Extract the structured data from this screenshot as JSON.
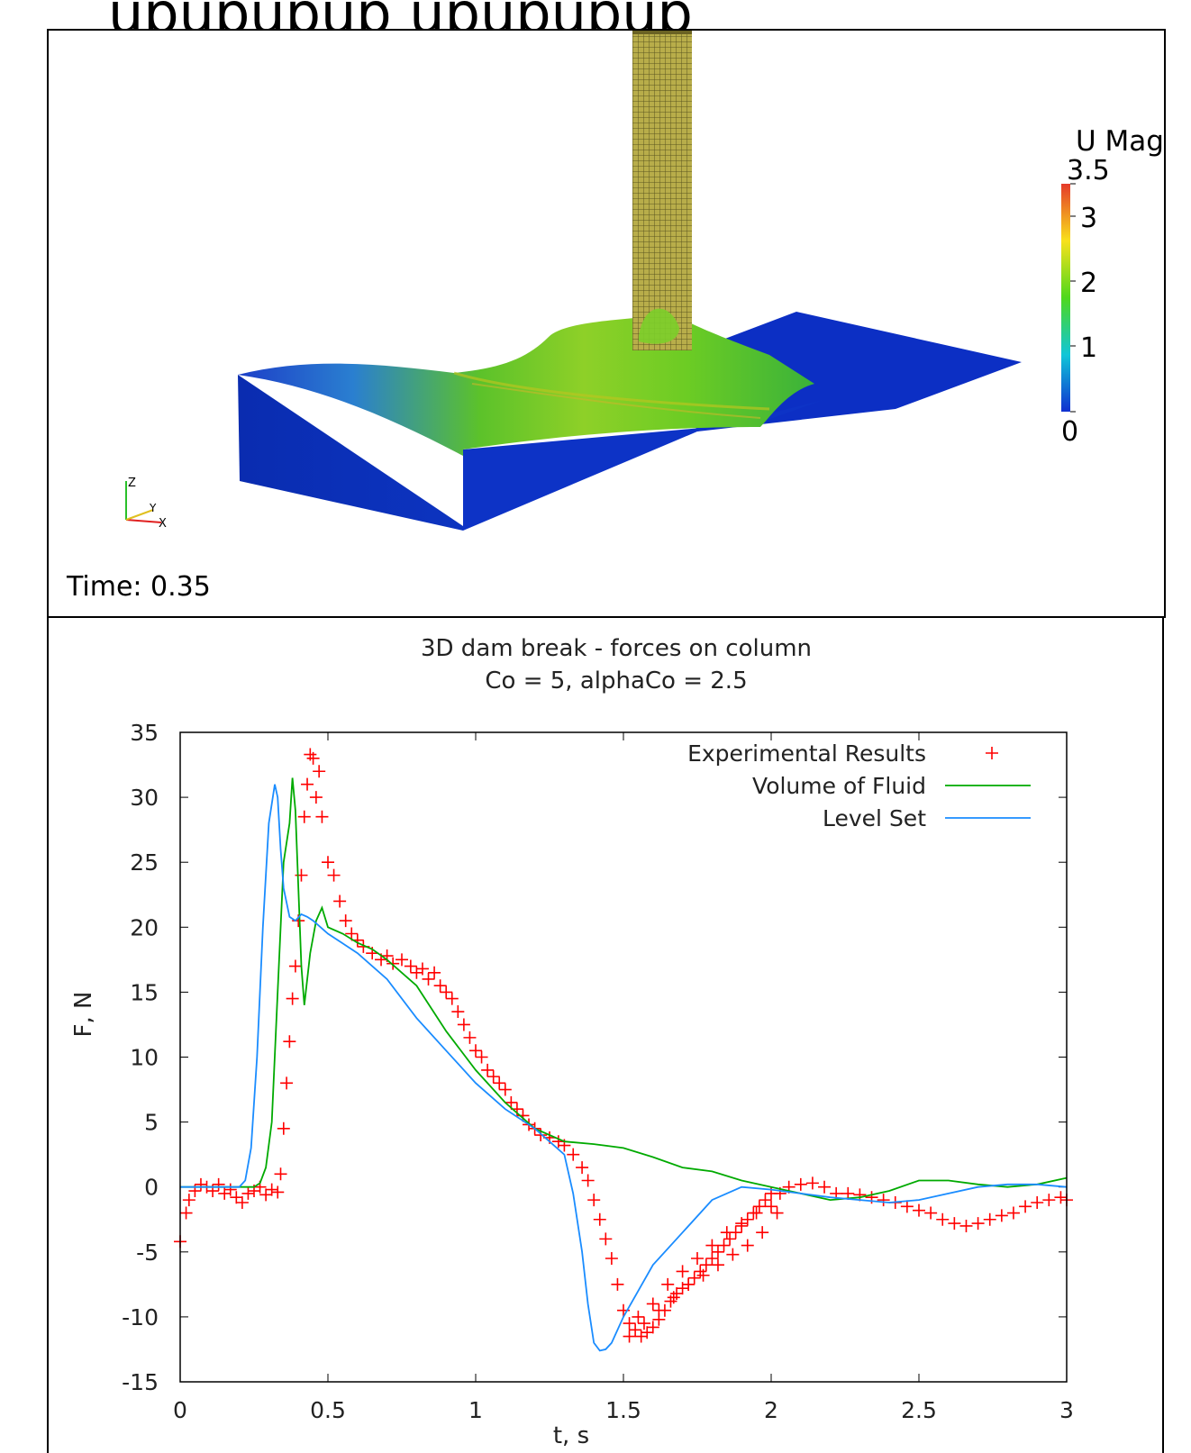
{
  "banner": {
    "text": "upupupup upupupup"
  },
  "simulation": {
    "time_label": "Time: 0.35",
    "colorbar": {
      "title": "U Mag",
      "ticks": [
        "3.5",
        "3",
        "2",
        "1",
        "0"
      ],
      "colors": [
        "#e53a2a",
        "#f8e11c",
        "#4fd81c",
        "#10c6d8",
        "#1030d0"
      ]
    },
    "axes": {
      "x": "X",
      "y": "Y",
      "z": "Z"
    }
  },
  "chart_data": {
    "type": "line",
    "title": "3D dam break - forces on column",
    "subtitle": "Co = 5, alphaCo = 2.5",
    "xlabel": "t, s",
    "ylabel": "F, N",
    "xlim": [
      0,
      3
    ],
    "ylim": [
      -15,
      35
    ],
    "x_ticks": [
      "0",
      "0.5",
      "1",
      "1.5",
      "2",
      "2.5",
      "3"
    ],
    "y_ticks": [
      "35",
      "30",
      "25",
      "20",
      "15",
      "10",
      "5",
      "0",
      "-5",
      "-10",
      "-15"
    ],
    "legend_position": "top-right",
    "series": [
      {
        "name": "Experimental Results",
        "style": "scatter",
        "color": "#ff0000",
        "x": [
          0.0,
          0.02,
          0.03,
          0.05,
          0.07,
          0.09,
          0.11,
          0.13,
          0.15,
          0.17,
          0.19,
          0.21,
          0.23,
          0.25,
          0.27,
          0.29,
          0.31,
          0.33,
          0.34,
          0.35,
          0.36,
          0.37,
          0.38,
          0.39,
          0.4,
          0.41,
          0.42,
          0.43,
          0.44,
          0.45,
          0.46,
          0.47,
          0.48,
          0.5,
          0.52,
          0.54,
          0.56,
          0.58,
          0.6,
          0.62,
          0.65,
          0.68,
          0.7,
          0.72,
          0.75,
          0.78,
          0.8,
          0.82,
          0.84,
          0.86,
          0.88,
          0.9,
          0.92,
          0.94,
          0.96,
          0.98,
          1.0,
          1.02,
          1.04,
          1.06,
          1.08,
          1.1,
          1.12,
          1.14,
          1.16,
          1.18,
          1.2,
          1.22,
          1.25,
          1.28,
          1.3,
          1.33,
          1.36,
          1.38,
          1.4,
          1.42,
          1.44,
          1.46,
          1.48,
          1.5,
          1.52,
          1.54,
          1.56,
          1.58,
          1.6,
          1.62,
          1.64,
          1.66,
          1.68,
          1.7,
          1.72,
          1.74,
          1.76,
          1.78,
          1.8,
          1.82,
          1.84,
          1.86,
          1.88,
          1.9,
          1.92,
          1.94,
          1.96,
          1.98,
          2.0,
          2.03,
          2.06,
          2.1,
          2.14,
          2.18,
          2.22,
          2.26,
          2.3,
          2.34,
          2.38,
          2.42,
          2.46,
          2.5,
          2.54,
          2.58,
          2.62,
          2.66,
          2.7,
          2.74,
          2.78,
          2.82,
          2.86,
          2.9,
          2.94,
          2.98,
          3.0,
          1.55,
          1.6,
          1.65,
          1.7,
          1.75,
          1.8,
          1.85,
          1.9,
          1.95,
          2.0,
          1.52,
          1.57,
          1.62,
          1.67,
          1.72,
          1.77,
          1.82,
          1.87,
          1.92,
          1.97,
          2.02
        ],
        "y": [
          -4.2,
          -2.0,
          -1.0,
          -0.3,
          0.2,
          0.0,
          -0.3,
          0.2,
          -0.5,
          -0.2,
          -0.8,
          -1.2,
          -0.5,
          -0.3,
          0.0,
          -0.6,
          -0.2,
          -0.4,
          1.0,
          4.5,
          8.0,
          11.2,
          14.5,
          17.0,
          20.5,
          24.0,
          28.5,
          31.0,
          33.3,
          33.0,
          30.0,
          32.0,
          28.5,
          25.0,
          24.0,
          22.0,
          20.5,
          19.5,
          19.0,
          18.5,
          18.0,
          17.5,
          17.8,
          17.2,
          17.5,
          17.0,
          16.5,
          16.8,
          16.0,
          16.5,
          15.5,
          15.0,
          14.5,
          13.5,
          12.5,
          11.5,
          10.5,
          10.0,
          9.0,
          8.5,
          8.0,
          7.5,
          6.5,
          6.0,
          5.5,
          4.8,
          4.5,
          4.0,
          3.8,
          3.5,
          3.2,
          2.5,
          1.5,
          0.5,
          -1.0,
          -2.5,
          -4.0,
          -5.5,
          -7.5,
          -9.5,
          -10.5,
          -11.0,
          -11.5,
          -11.2,
          -10.8,
          -10.2,
          -9.5,
          -8.8,
          -8.2,
          -7.8,
          -7.5,
          -7.0,
          -6.5,
          -6.0,
          -5.5,
          -5.0,
          -4.5,
          -4.0,
          -3.5,
          -3.0,
          -2.5,
          -2.0,
          -1.5,
          -1.0,
          -0.5,
          -0.5,
          0.0,
          0.2,
          0.3,
          0.0,
          -0.5,
          -0.5,
          -0.6,
          -0.8,
          -1.0,
          -1.2,
          -1.5,
          -1.8,
          -2.0,
          -2.5,
          -2.8,
          -3.0,
          -2.8,
          -2.5,
          -2.2,
          -2.0,
          -1.5,
          -1.2,
          -1.0,
          -0.8,
          -1.0,
          -10.0,
          -9.0,
          -7.5,
          -6.5,
          -5.5,
          -4.5,
          -3.5,
          -2.8,
          -2.0,
          -1.5,
          -11.5,
          -10.5,
          -9.5,
          -8.5,
          -7.5,
          -6.8,
          -6.0,
          -5.2,
          -4.5,
          -3.5,
          -2.0
        ]
      },
      {
        "name": "Volume of Fluid",
        "style": "line",
        "color": "#00aa00",
        "x": [
          0.0,
          0.1,
          0.2,
          0.25,
          0.27,
          0.29,
          0.31,
          0.33,
          0.35,
          0.37,
          0.38,
          0.39,
          0.4,
          0.41,
          0.42,
          0.44,
          0.46,
          0.48,
          0.5,
          0.55,
          0.6,
          0.65,
          0.7,
          0.8,
          0.9,
          1.0,
          1.1,
          1.2,
          1.3,
          1.4,
          1.5,
          1.6,
          1.7,
          1.8,
          1.9,
          2.0,
          2.1,
          2.2,
          2.3,
          2.4,
          2.5,
          2.6,
          2.7,
          2.8,
          2.9,
          3.0
        ],
        "y": [
          0.0,
          0.0,
          0.0,
          0.0,
          0.3,
          1.5,
          5.0,
          15.0,
          25.0,
          28.0,
          31.5,
          29.0,
          23.0,
          17.0,
          14.0,
          18.0,
          20.5,
          21.5,
          20.0,
          19.5,
          18.8,
          18.3,
          17.5,
          15.5,
          12.0,
          9.0,
          6.5,
          4.5,
          3.5,
          3.3,
          3.0,
          2.3,
          1.5,
          1.2,
          0.5,
          0.0,
          -0.5,
          -1.0,
          -0.8,
          -0.3,
          0.5,
          0.5,
          0.2,
          0.0,
          0.2,
          0.7
        ]
      },
      {
        "name": "Level Set",
        "style": "line",
        "color": "#1a8cff",
        "x": [
          0.0,
          0.1,
          0.2,
          0.22,
          0.24,
          0.26,
          0.28,
          0.3,
          0.32,
          0.33,
          0.34,
          0.35,
          0.37,
          0.39,
          0.41,
          0.43,
          0.45,
          0.5,
          0.6,
          0.7,
          0.8,
          0.9,
          1.0,
          1.1,
          1.2,
          1.3,
          1.33,
          1.36,
          1.38,
          1.4,
          1.42,
          1.44,
          1.46,
          1.5,
          1.55,
          1.6,
          1.7,
          1.8,
          1.9,
          2.0,
          2.1,
          2.2,
          2.3,
          2.4,
          2.5,
          2.6,
          2.7,
          2.8,
          2.9,
          3.0
        ],
        "y": [
          0.0,
          0.0,
          0.0,
          0.5,
          3.0,
          10.0,
          20.0,
          28.0,
          31.0,
          30.0,
          26.0,
          23.0,
          20.8,
          20.5,
          21.0,
          20.8,
          20.5,
          19.5,
          18.0,
          16.0,
          13.0,
          10.5,
          8.0,
          6.0,
          4.5,
          2.5,
          -0.5,
          -5.0,
          -9.0,
          -12.0,
          -12.6,
          -12.5,
          -12.0,
          -10.0,
          -8.0,
          -6.0,
          -3.5,
          -1.0,
          0.0,
          -0.2,
          -0.5,
          -0.8,
          -1.0,
          -1.2,
          -1.0,
          -0.5,
          0.0,
          0.2,
          0.2,
          0.0
        ]
      }
    ]
  }
}
